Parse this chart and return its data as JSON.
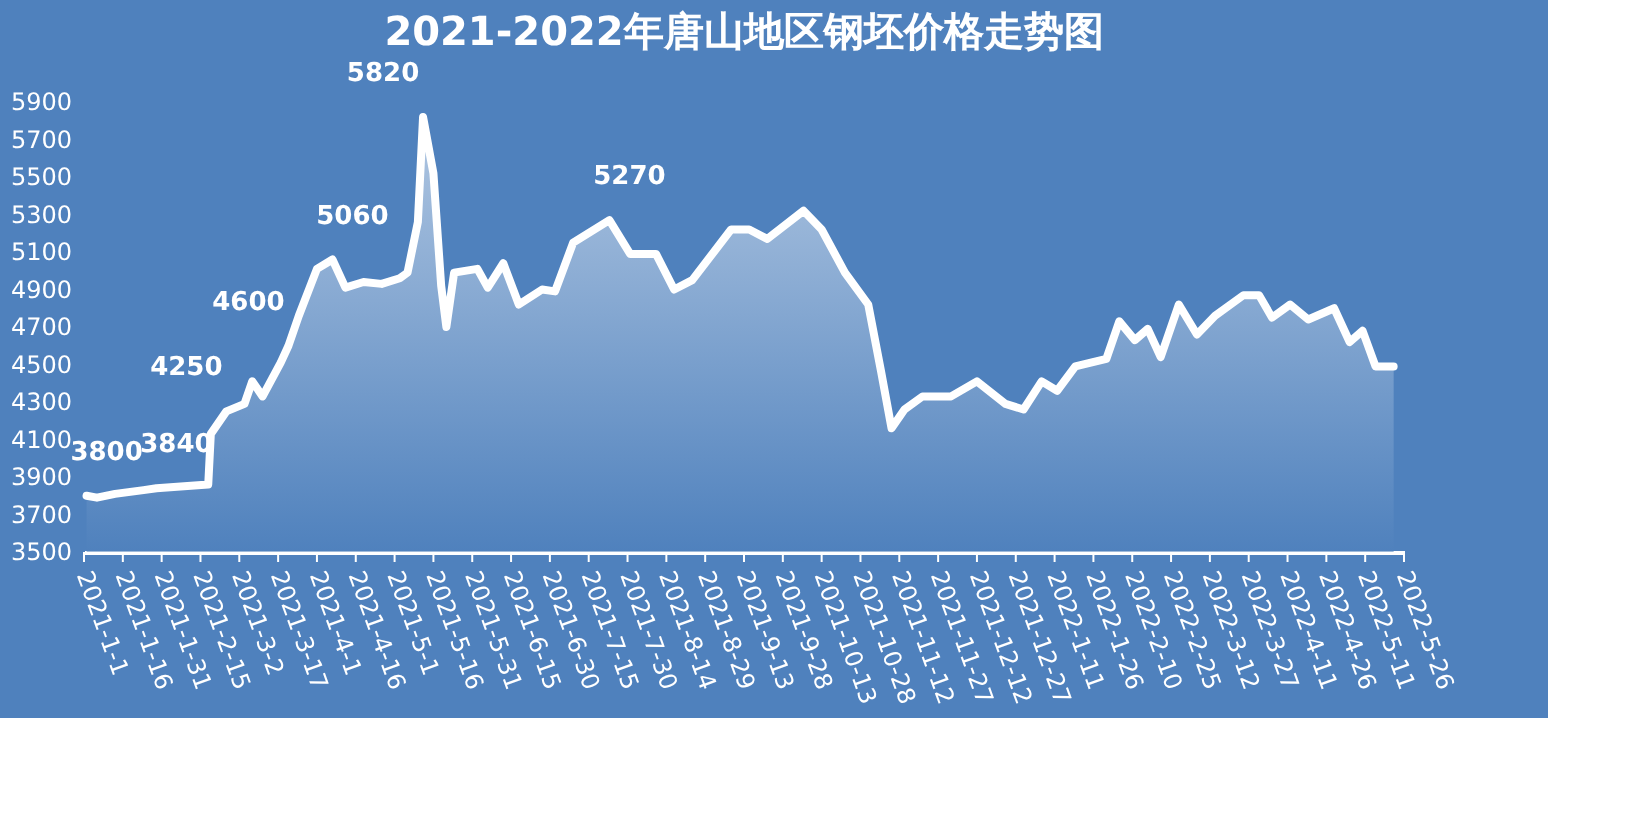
{
  "chart_data": {
    "type": "area",
    "title": "2021-2022年唐山地区钢坯价格走势图",
    "x": [
      "2021-01-02",
      "2021-01-06",
      "2021-01-13",
      "2021-01-24",
      "2021-01-29",
      "2021-02-18",
      "2021-02-19",
      "2021-02-25",
      "2021-03-04",
      "2021-03-07",
      "2021-03-11",
      "2021-03-18",
      "2021-03-21",
      "2021-03-25",
      "2021-04-01",
      "2021-04-07",
      "2021-04-12",
      "2021-04-19",
      "2021-04-26",
      "2021-05-03",
      "2021-05-06",
      "2021-05-10",
      "2021-05-12",
      "2021-05-16",
      "2021-05-19",
      "2021-05-21",
      "2021-05-24",
      "2021-06-02",
      "2021-06-06",
      "2021-06-12",
      "2021-06-18",
      "2021-06-27",
      "2021-07-02",
      "2021-07-09",
      "2021-07-23",
      "2021-07-31",
      "2021-08-10",
      "2021-08-17",
      "2021-08-24",
      "2021-09-08",
      "2021-09-15",
      "2021-09-22",
      "2021-10-06",
      "2021-10-13",
      "2021-10-22",
      "2021-10-31",
      "2021-11-05",
      "2021-11-09",
      "2021-11-14",
      "2021-11-21",
      "2021-12-02",
      "2021-12-12",
      "2021-12-23",
      "2021-12-30",
      "2022-01-06",
      "2022-01-12",
      "2022-01-19",
      "2022-01-31",
      "2022-02-05",
      "2022-02-11",
      "2022-02-16",
      "2022-02-21",
      "2022-02-28",
      "2022-03-07",
      "2022-03-14",
      "2022-03-25",
      "2022-03-31",
      "2022-04-05",
      "2022-04-12",
      "2022-04-19",
      "2022-04-29",
      "2022-05-05",
      "2022-05-10",
      "2022-05-15",
      "2022-05-22"
    ],
    "series": [
      {
        "color": "#ffffff",
        "values": [
          3800,
          3790,
          3810,
          3830,
          3840,
          3860,
          4130,
          4250,
          4290,
          4410,
          4330,
          4510,
          4600,
          4760,
          5010,
          5060,
          4910,
          4940,
          4930,
          4960,
          4990,
          5260,
          5820,
          5520,
          4920,
          4700,
          4990,
          5010,
          4910,
          5040,
          4820,
          4900,
          4890,
          5150,
          5270,
          5090,
          5090,
          4900,
          4950,
          5220,
          5220,
          5170,
          5320,
          5220,
          4990,
          4820,
          4460,
          4160,
          4260,
          4330,
          4330,
          4410,
          4290,
          4260,
          4410,
          4360,
          4490,
          4530,
          4730,
          4630,
          4690,
          4540,
          4820,
          4660,
          4760,
          4870,
          4870,
          4750,
          4820,
          4740,
          4800,
          4620,
          4680,
          4490,
          4490
        ]
      }
    ],
    "annotations": [
      {
        "text": "3800",
        "x": "2021-01-02",
        "y": 3800
      },
      {
        "text": "3840",
        "x": "2021-01-29",
        "y": 3840
      },
      {
        "text": "4250",
        "x": "2021-02-25",
        "y": 4250
      },
      {
        "text": "4600",
        "x": "2021-03-21",
        "y": 4600
      },
      {
        "text": "5060",
        "x": "2021-04-07",
        "y": 5060
      },
      {
        "text": "5820",
        "x": "2021-05-12",
        "y": 5820
      },
      {
        "text": "5270",
        "x": "2021-07-23",
        "y": 5270
      }
    ],
    "xlim": [
      "2021-01-01",
      "2022-05-26"
    ],
    "xticks": [
      {
        "value": "2021-01-01",
        "label": "2021-1-1"
      },
      {
        "value": "2021-01-16",
        "label": "2021-1-16"
      },
      {
        "value": "2021-01-31",
        "label": "2021-1-31"
      },
      {
        "value": "2021-02-15",
        "label": "2021-2-15"
      },
      {
        "value": "2021-03-02",
        "label": "2021-3-2"
      },
      {
        "value": "2021-03-17",
        "label": "2021-3-17"
      },
      {
        "value": "2021-04-01",
        "label": "2021-4-1"
      },
      {
        "value": "2021-04-16",
        "label": "2021-4-16"
      },
      {
        "value": "2021-05-01",
        "label": "2021-5-1"
      },
      {
        "value": "2021-05-16",
        "label": "2021-5-16"
      },
      {
        "value": "2021-05-31",
        "label": "2021-5-31"
      },
      {
        "value": "2021-06-15",
        "label": "2021-6-15"
      },
      {
        "value": "2021-06-30",
        "label": "2021-6-30"
      },
      {
        "value": "2021-07-15",
        "label": "2021-7-15"
      },
      {
        "value": "2021-07-30",
        "label": "2021-7-30"
      },
      {
        "value": "2021-08-14",
        "label": "2021-8-14"
      },
      {
        "value": "2021-08-29",
        "label": "2021-8-29"
      },
      {
        "value": "2021-09-13",
        "label": "2021-9-13"
      },
      {
        "value": "2021-09-28",
        "label": "2021-9-28"
      },
      {
        "value": "2021-10-13",
        "label": "2021-10-13"
      },
      {
        "value": "2021-10-28",
        "label": "2021-10-28"
      },
      {
        "value": "2021-11-12",
        "label": "2021-11-12"
      },
      {
        "value": "2021-11-27",
        "label": "2021-11-27"
      },
      {
        "value": "2021-12-12",
        "label": "2021-12-12"
      },
      {
        "value": "2021-12-27",
        "label": "2021-12-27"
      },
      {
        "value": "2022-01-11",
        "label": "2022-1-11"
      },
      {
        "value": "2022-01-26",
        "label": "2022-1-26"
      },
      {
        "value": "2022-02-10",
        "label": "2022-2-10"
      },
      {
        "value": "2022-02-25",
        "label": "2022-2-25"
      },
      {
        "value": "2022-03-12",
        "label": "2022-3-12"
      },
      {
        "value": "2022-03-27",
        "label": "2022-3-27"
      },
      {
        "value": "2022-04-11",
        "label": "2022-4-11"
      },
      {
        "value": "2022-04-26",
        "label": "2022-4-26"
      },
      {
        "value": "2022-05-11",
        "label": "2022-5-11"
      },
      {
        "value": "2022-05-26",
        "label": "2022-5-26"
      }
    ],
    "ylim": [
      3500,
      5900
    ],
    "yticks": [
      3500,
      3700,
      3900,
      4100,
      4300,
      4500,
      4700,
      4900,
      5100,
      5300,
      5500,
      5700,
      5900
    ],
    "grid": false
  }
}
